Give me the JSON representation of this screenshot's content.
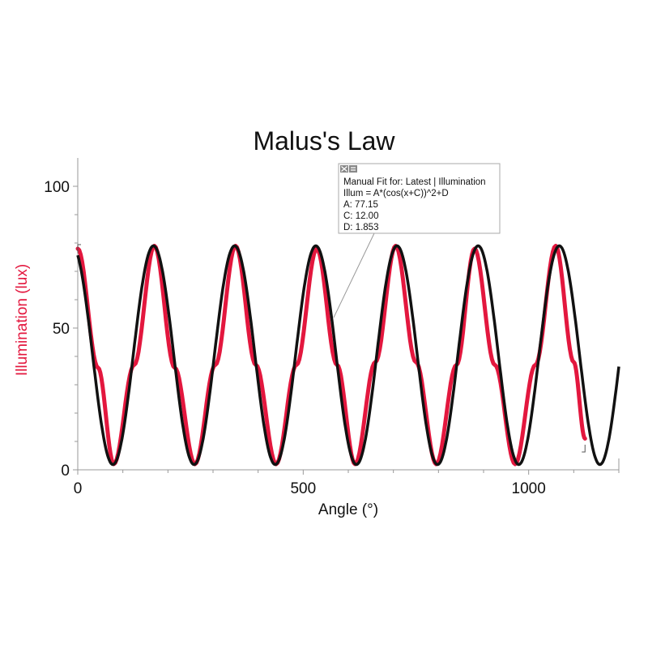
{
  "colors": {
    "data_series": "#e3173e",
    "fit_series": "#111111",
    "axis": "#999999"
  },
  "chart_data": {
    "type": "line",
    "title": "Malus's Law",
    "xlabel": "Angle (°)",
    "ylabel": "Illumination (lux)",
    "xlim": [
      0,
      1200
    ],
    "ylim": [
      0,
      110
    ],
    "x_ticks": [
      0,
      500,
      1000
    ],
    "y_ticks": [
      0,
      50,
      100
    ],
    "grid": false,
    "fit": {
      "title": "Manual Fit for: Latest | Illumination",
      "equation": "Illum = A*(cos(x+C))^2+D",
      "params": [
        {
          "label": "A: 77.15",
          "name": "A",
          "value": 77.15
        },
        {
          "label": "C: 12.00",
          "name": "C",
          "value": 12.0
        },
        {
          "label": "D: 1.853",
          "name": "D",
          "value": 1.853
        }
      ]
    },
    "series": [
      {
        "name": "Latest | Illumination",
        "x": [
          0,
          45,
          80,
          125,
          170,
          215,
          260,
          305,
          350,
          395,
          440,
          485,
          530,
          575,
          615,
          660,
          705,
          750,
          795,
          840,
          880,
          925,
          970,
          1015,
          1060,
          1100,
          1125
        ],
        "y": [
          78,
          36,
          2,
          37,
          79,
          36,
          2,
          37,
          79,
          37,
          2,
          37,
          78,
          37,
          2,
          38,
          79,
          38,
          2,
          37,
          78,
          37,
          2,
          37,
          79,
          38,
          11
        ]
      },
      {
        "name": "Manual Fit",
        "x_range": [
          0,
          1200
        ]
      }
    ]
  }
}
